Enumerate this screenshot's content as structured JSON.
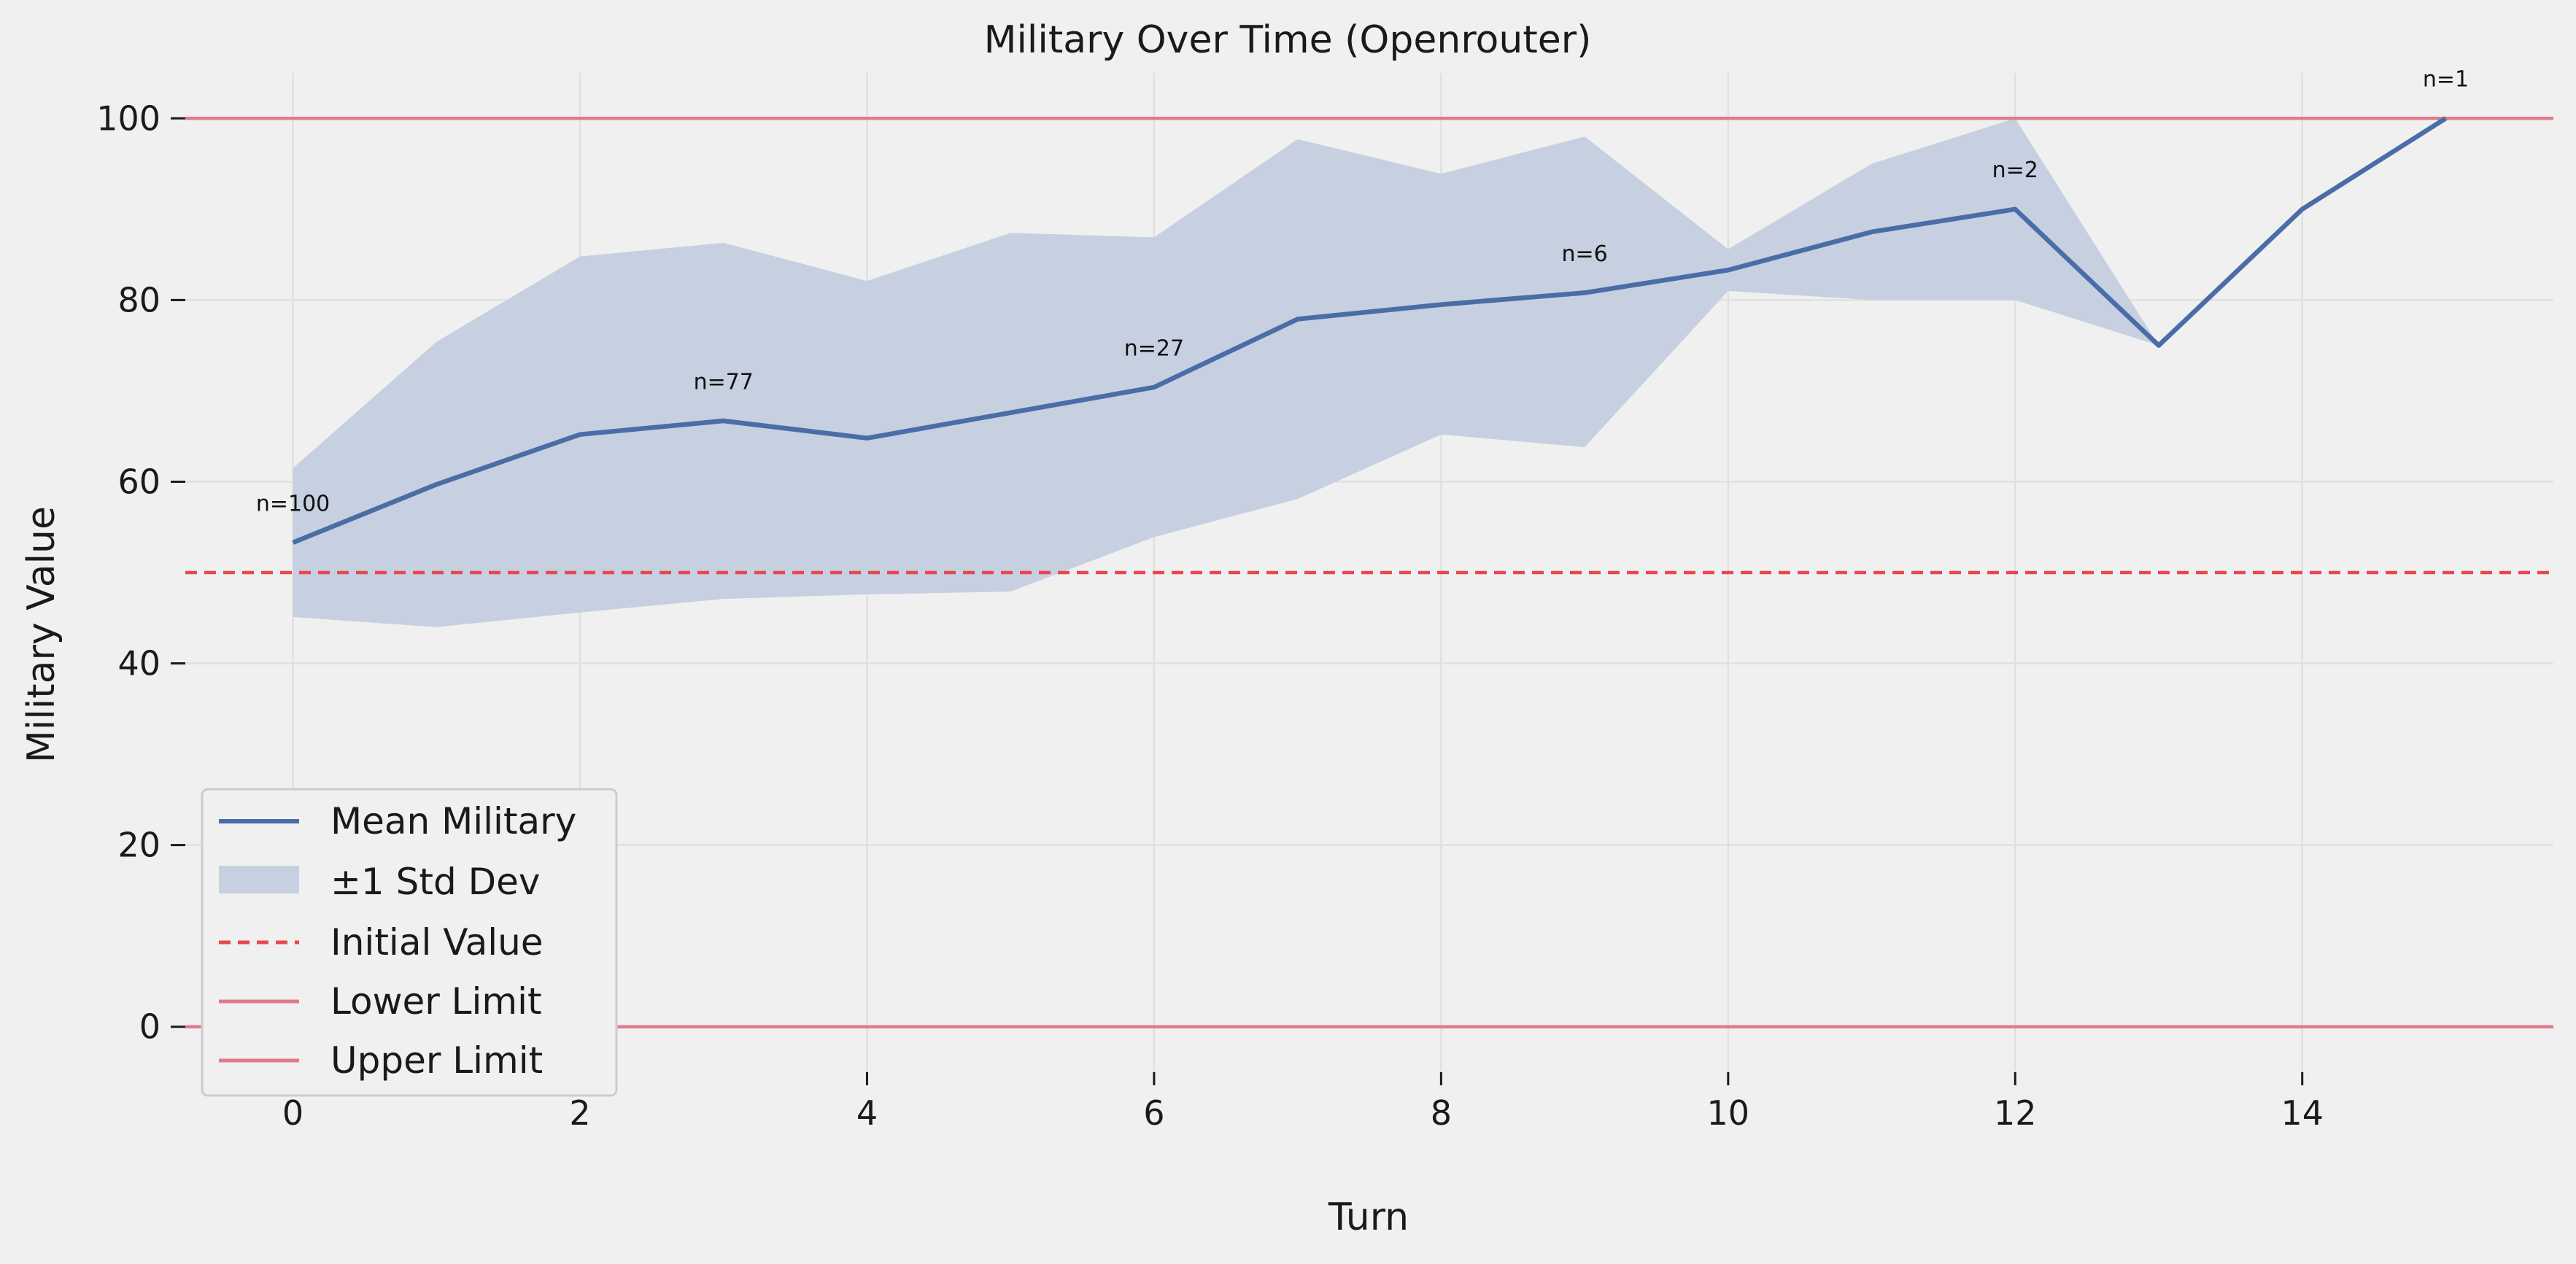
{
  "chart_data": {
    "type": "line",
    "title": "Military Over Time (Openrouter)",
    "xlabel": "Turn",
    "ylabel": "Military Value",
    "xlim": [
      -0.75,
      15.75
    ],
    "ylim": [
      -5,
      105
    ],
    "xticks": [
      0,
      2,
      4,
      6,
      8,
      10,
      12,
      14
    ],
    "yticks": [
      0,
      20,
      40,
      60,
      80,
      100
    ],
    "grid": true,
    "legend_position": "lower-left",
    "x": [
      0,
      1,
      2,
      3,
      4,
      5,
      6,
      7,
      8,
      9,
      10,
      11,
      12,
      13,
      14,
      15
    ],
    "series": [
      {
        "name": "Mean Military",
        "type": "line",
        "color": "#4a6da7",
        "values": [
          53.3,
          59.7,
          65.2,
          66.7,
          64.8,
          67.6,
          70.4,
          77.9,
          79.5,
          80.8,
          83.3,
          87.5,
          90.0,
          75.0,
          90.0,
          100.0
        ]
      },
      {
        "name": "±1 Std Dev",
        "type": "band",
        "color": "#c6d0e0",
        "upper": [
          61.5,
          75.4,
          84.8,
          86.3,
          82.1,
          87.4,
          86.9,
          97.7,
          93.9,
          98.0,
          85.6,
          95.0,
          100.0,
          75.0,
          90.0,
          100.0
        ],
        "lower": [
          45.1,
          44.0,
          45.6,
          47.1,
          47.6,
          47.9,
          53.9,
          58.1,
          65.2,
          63.8,
          81.0,
          80.0,
          80.0,
          75.0,
          90.0,
          100.0
        ]
      }
    ],
    "reference_lines": [
      {
        "name": "Initial Value",
        "value": 50,
        "style": "dashed",
        "color": "#e8474f"
      },
      {
        "name": "Lower Limit",
        "value": 0,
        "style": "solid",
        "color": "#e07b8c"
      },
      {
        "name": "Upper Limit",
        "value": 100,
        "style": "solid",
        "color": "#e07b8c"
      }
    ],
    "annotations": [
      {
        "text": "n=100",
        "x": 0,
        "y": 56.8
      },
      {
        "text": "n=77",
        "x": 3,
        "y": 70.2
      },
      {
        "text": "n=27",
        "x": 6,
        "y": 73.9
      },
      {
        "text": "n=6",
        "x": 9,
        "y": 84.3
      },
      {
        "text": "n=2",
        "x": 12,
        "y": 93.5
      },
      {
        "text": "n=1",
        "x": 15,
        "y": 103.5
      }
    ],
    "legend": [
      "Mean Military",
      "±1 Std Dev",
      "Initial Value",
      "Lower Limit",
      "Upper Limit"
    ]
  }
}
